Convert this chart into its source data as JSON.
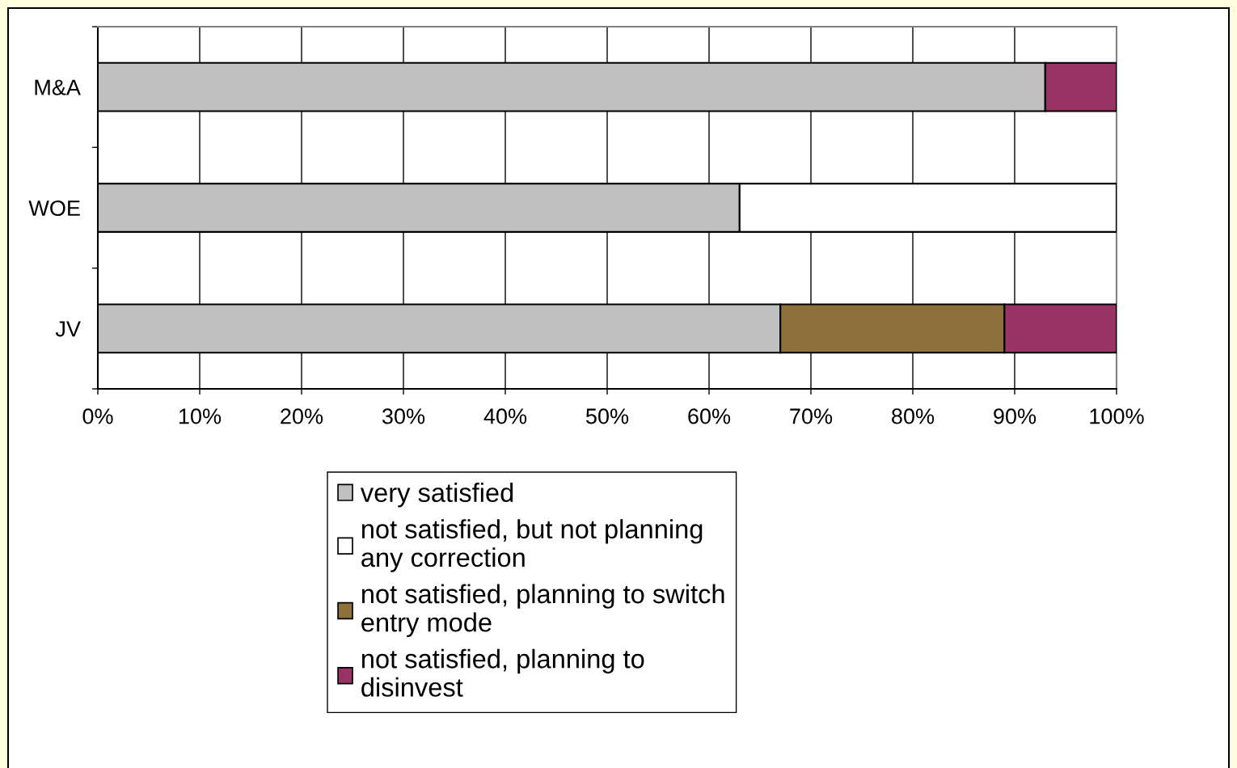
{
  "chart_data": {
    "type": "bar",
    "orientation": "horizontal",
    "stacked": true,
    "categories": [
      "M&A",
      "WOE",
      "JV"
    ],
    "series": [
      {
        "name": "very satisfied",
        "color": "#c0c0c0",
        "values": [
          93,
          63,
          67
        ]
      },
      {
        "name": "not satisfied, but not planning any correction",
        "color": "#ffffff",
        "values": [
          null,
          37,
          null
        ]
      },
      {
        "name": "not satisfied, planning to switch entry mode",
        "color": "#8e703d",
        "values": [
          null,
          null,
          22
        ]
      },
      {
        "name": "not satisfied, planning to disinvest",
        "color": "#993366",
        "values": [
          7,
          null,
          11
        ]
      }
    ],
    "xlim": [
      0,
      100
    ],
    "xticks": [
      {
        "value": 0,
        "label": "0%"
      },
      {
        "value": 10,
        "label": "10%"
      },
      {
        "value": 20,
        "label": "20%"
      },
      {
        "value": 30,
        "label": "30%"
      },
      {
        "value": 40,
        "label": "40%"
      },
      {
        "value": 50,
        "label": "50%"
      },
      {
        "value": 60,
        "label": "60%"
      },
      {
        "value": 70,
        "label": "70%"
      },
      {
        "value": 80,
        "label": "80%"
      },
      {
        "value": 90,
        "label": "90%"
      },
      {
        "value": 100,
        "label": "100%"
      }
    ],
    "grid": "x",
    "legend": "bottom"
  }
}
